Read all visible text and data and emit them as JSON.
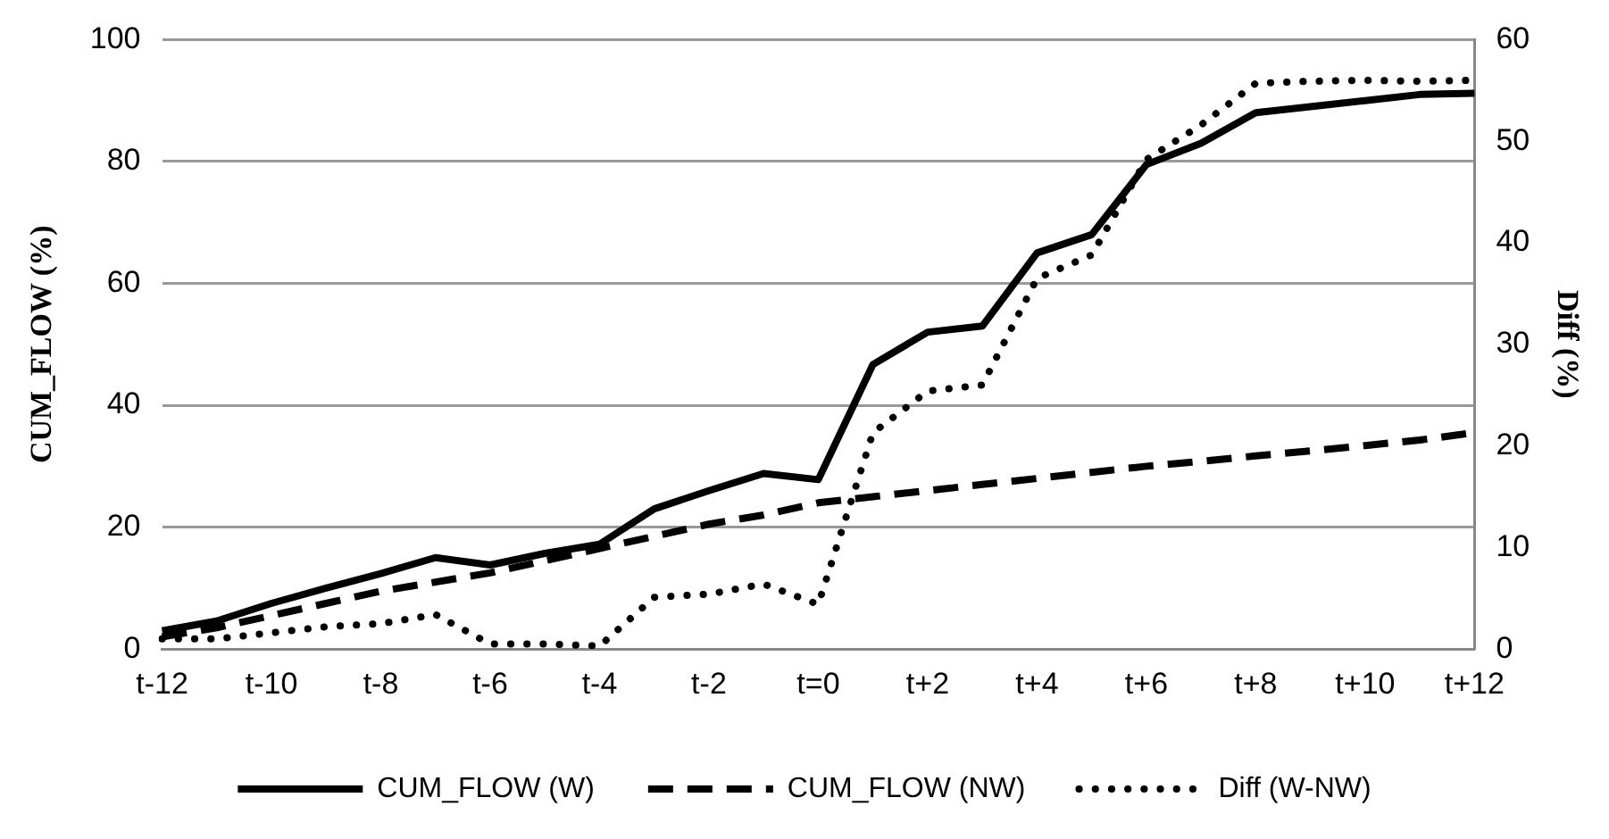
{
  "chart_data": {
    "type": "line",
    "ylabel": "CUM_FLOW (%)",
    "y2label": "Diff (%)",
    "categories": [
      "t-12",
      null,
      "t-10",
      null,
      "t-8",
      null,
      "t-6",
      null,
      "t-4",
      null,
      "t-2",
      null,
      "t=0",
      null,
      "t+2",
      null,
      "t+4",
      null,
      "t+6",
      null,
      "t+8",
      null,
      "t+10",
      null,
      "t+12"
    ],
    "series": [
      {
        "name": "CUM_FLOW (W)",
        "color": "#000000",
        "line_style": "solid",
        "values": [
          3,
          4.6,
          7.5,
          10,
          12.4,
          15,
          13.8,
          15.7,
          17.2,
          23,
          26,
          28.8,
          27.8,
          46.7,
          52,
          53,
          65,
          68,
          79.5,
          83,
          88,
          89,
          90,
          91,
          91.2
        ]
      },
      {
        "name": "CUM_FLOW (NW)",
        "color": "#000000",
        "line_style": "dashed",
        "values": [
          2,
          3.5,
          5.5,
          7.5,
          9.5,
          11,
          12.5,
          14.5,
          16.5,
          18.5,
          20.5,
          22,
          24,
          25,
          26,
          27,
          28,
          29,
          30,
          30.8,
          31.7,
          32.5,
          33.4,
          34.3,
          35.5
        ]
      },
      {
        "name": "Diff (W-NW)",
        "color": "#000000",
        "line_style": "dotted",
        "axis": "y2",
        "values": [
          1,
          1,
          1.6,
          2.2,
          2.5,
          3.4,
          0.5,
          0.5,
          0.3,
          5.1,
          5.4,
          6.4,
          4.4,
          21.3,
          25.4,
          26,
          36.5,
          38.8,
          48.2,
          51.6,
          55.7,
          55.9,
          56,
          55.9,
          56
        ]
      }
    ],
    "ylim": [
      0,
      100
    ],
    "yticks": [
      0,
      20,
      40,
      60,
      80,
      100
    ],
    "y2lim": [
      0,
      60
    ],
    "y2ticks": [
      0,
      10,
      20,
      30,
      40,
      50,
      60
    ],
    "grid": "y",
    "legend": "bottom",
    "marker": "none"
  }
}
